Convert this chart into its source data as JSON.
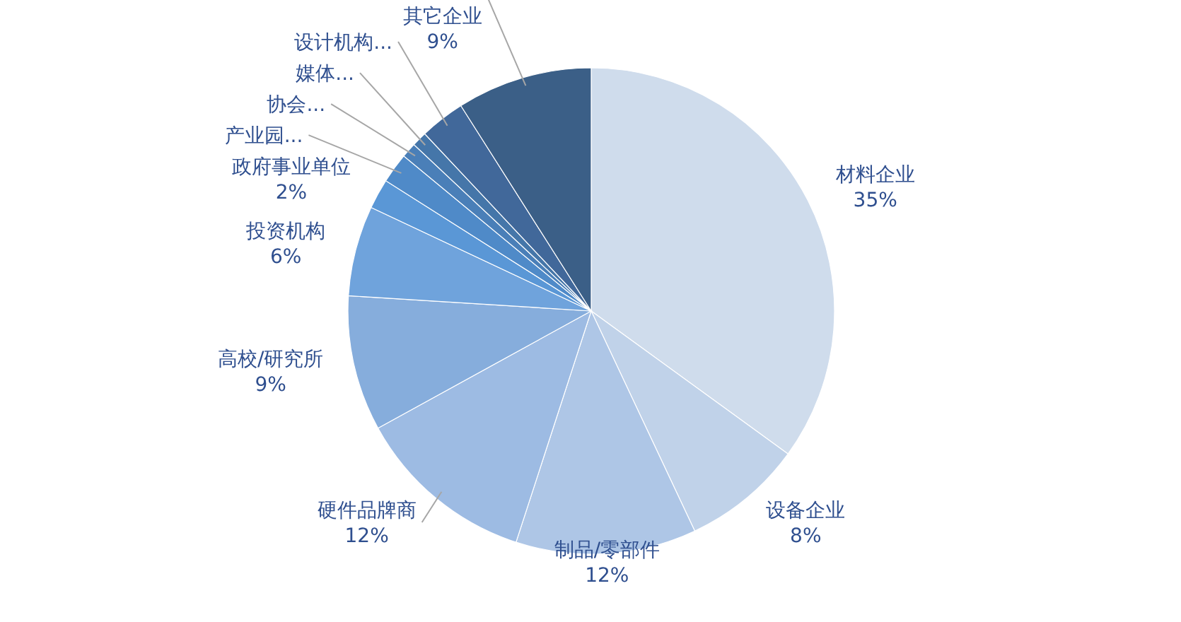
{
  "chart_data": {
    "type": "pie",
    "categories": [
      "材料企业",
      "设备企业",
      "制品/零部件",
      "硬件品牌商",
      "高校/研究所",
      "投资机构",
      "政府事业单位",
      "产业园...",
      "协会...",
      "媒体...",
      "设计机构...",
      "其它企业"
    ],
    "values": [
      35,
      8,
      12,
      12,
      9,
      6,
      2,
      2,
      1,
      1,
      3,
      9
    ],
    "value_labels": [
      "35%",
      "8%",
      "12%",
      "12%",
      "9%",
      "6%",
      "2%",
      null,
      null,
      null,
      null,
      "9%"
    ],
    "colors": [
      "#cfdcec",
      "#c0d2e9",
      "#aec6e6",
      "#9dbbe3",
      "#86addc",
      "#6fa3dc",
      "#5a97d6",
      "#4f8ac8",
      "#4a7fb8",
      "#4576a9",
      "#41689a",
      "#3b5f87"
    ]
  }
}
